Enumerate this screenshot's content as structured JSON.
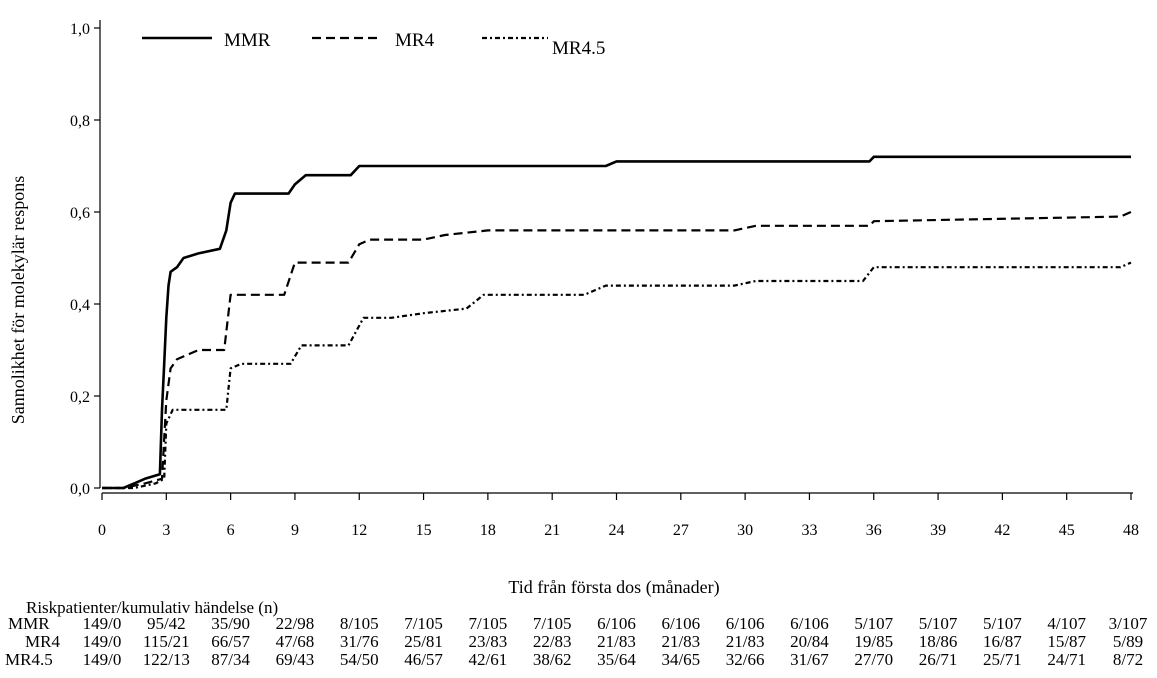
{
  "chart_data": {
    "type": "line",
    "title": "",
    "xlabel": "Tid från första dos (månader)",
    "ylabel": "Sannolikhet för molekylär respons",
    "xlim": [
      0,
      48
    ],
    "ylim": [
      0,
      1
    ],
    "x_ticks": [
      0,
      3,
      6,
      9,
      12,
      15,
      18,
      21,
      24,
      27,
      30,
      33,
      36,
      39,
      42,
      45,
      48
    ],
    "y_ticks": [
      "0,0",
      "0,2",
      "0,4",
      "0,6",
      "0,8",
      "1,0"
    ],
    "y_tick_values": [
      0,
      0.2,
      0.4,
      0.6,
      0.8,
      1.0
    ],
    "grid": false,
    "legend_position": "top-left",
    "series": [
      {
        "name": "MMR",
        "style": "solid",
        "points": [
          [
            0,
            0
          ],
          [
            1,
            0
          ],
          [
            1.5,
            0.01
          ],
          [
            2,
            0.02
          ],
          [
            2.7,
            0.03
          ],
          [
            2.8,
            0.17
          ],
          [
            2.9,
            0.27
          ],
          [
            3.0,
            0.37
          ],
          [
            3.1,
            0.44
          ],
          [
            3.2,
            0.47
          ],
          [
            3.5,
            0.48
          ],
          [
            3.8,
            0.5
          ],
          [
            4.5,
            0.51
          ],
          [
            5.5,
            0.52
          ],
          [
            5.8,
            0.56
          ],
          [
            6.0,
            0.62
          ],
          [
            6.2,
            0.64
          ],
          [
            7,
            0.64
          ],
          [
            8.7,
            0.64
          ],
          [
            9.0,
            0.66
          ],
          [
            9.5,
            0.68
          ],
          [
            11.6,
            0.68
          ],
          [
            12,
            0.7
          ],
          [
            23.5,
            0.7
          ],
          [
            24,
            0.71
          ],
          [
            35.8,
            0.71
          ],
          [
            36,
            0.72
          ],
          [
            48,
            0.72
          ]
        ]
      },
      {
        "name": "MR4",
        "style": "dashed",
        "points": [
          [
            0,
            0
          ],
          [
            1,
            0
          ],
          [
            2,
            0.01
          ],
          [
            2.8,
            0.02
          ],
          [
            3.0,
            0.19
          ],
          [
            3.2,
            0.26
          ],
          [
            3.5,
            0.28
          ],
          [
            4.5,
            0.3
          ],
          [
            5.7,
            0.3
          ],
          [
            6.0,
            0.42
          ],
          [
            8.5,
            0.42
          ],
          [
            9.0,
            0.49
          ],
          [
            11.5,
            0.49
          ],
          [
            12,
            0.53
          ],
          [
            12.5,
            0.54
          ],
          [
            15,
            0.54
          ],
          [
            16,
            0.55
          ],
          [
            18,
            0.56
          ],
          [
            29.5,
            0.56
          ],
          [
            30.5,
            0.57
          ],
          [
            35.8,
            0.57
          ],
          [
            36,
            0.58
          ],
          [
            47.5,
            0.59
          ],
          [
            48,
            0.6
          ]
        ]
      },
      {
        "name": "MR4.5",
        "style": "dashdot",
        "points": [
          [
            0,
            0
          ],
          [
            1.5,
            0
          ],
          [
            2.5,
            0.01
          ],
          [
            2.9,
            0.02
          ],
          [
            3.0,
            0.14
          ],
          [
            3.3,
            0.17
          ],
          [
            5.8,
            0.17
          ],
          [
            6.0,
            0.26
          ],
          [
            6.5,
            0.27
          ],
          [
            8.8,
            0.27
          ],
          [
            9.3,
            0.31
          ],
          [
            11.5,
            0.31
          ],
          [
            12.2,
            0.37
          ],
          [
            13.5,
            0.37
          ],
          [
            15,
            0.38
          ],
          [
            17,
            0.39
          ],
          [
            17.8,
            0.42
          ],
          [
            22.5,
            0.42
          ],
          [
            23.5,
            0.44
          ],
          [
            29.5,
            0.44
          ],
          [
            30.5,
            0.45
          ],
          [
            35.5,
            0.45
          ],
          [
            36,
            0.48
          ],
          [
            47.5,
            0.48
          ],
          [
            48,
            0.49
          ]
        ]
      }
    ]
  },
  "legend": {
    "items": [
      {
        "label": "MMR",
        "style": "solid"
      },
      {
        "label": "MR4",
        "style": "dashed"
      },
      {
        "label": "MR4.5",
        "style": "dashdot"
      }
    ]
  },
  "risk_table": {
    "title": "Riskpatienter/kumulativ händelse (n)",
    "time_points": [
      0,
      3,
      6,
      9,
      12,
      15,
      18,
      21,
      24,
      27,
      30,
      33,
      36,
      39,
      42,
      45,
      48
    ],
    "rows": [
      {
        "label": "MMR",
        "values": [
          "149/0",
          "95/42",
          "35/90",
          "22/98",
          "8/105",
          "7/105",
          "7/105",
          "7/105",
          "6/106",
          "6/106",
          "6/106",
          "6/106",
          "5/107",
          "5/107",
          "5/107",
          "4/107",
          "3/107"
        ]
      },
      {
        "label": "MR4",
        "values": [
          "149/0",
          "115/21",
          "66/57",
          "47/68",
          "31/76",
          "25/81",
          "23/83",
          "22/83",
          "21/83",
          "21/83",
          "21/83",
          "20/84",
          "19/85",
          "18/86",
          "16/87",
          "15/87",
          "5/89"
        ]
      },
      {
        "label": "MR4.5",
        "values": [
          "149/0",
          "122/13",
          "87/34",
          "69/43",
          "54/50",
          "46/57",
          "42/61",
          "38/62",
          "35/64",
          "34/65",
          "32/66",
          "31/67",
          "27/70",
          "26/71",
          "25/71",
          "24/71",
          "8/72"
        ]
      }
    ]
  },
  "colors": {
    "line": "#000000",
    "background": "#ffffff"
  }
}
